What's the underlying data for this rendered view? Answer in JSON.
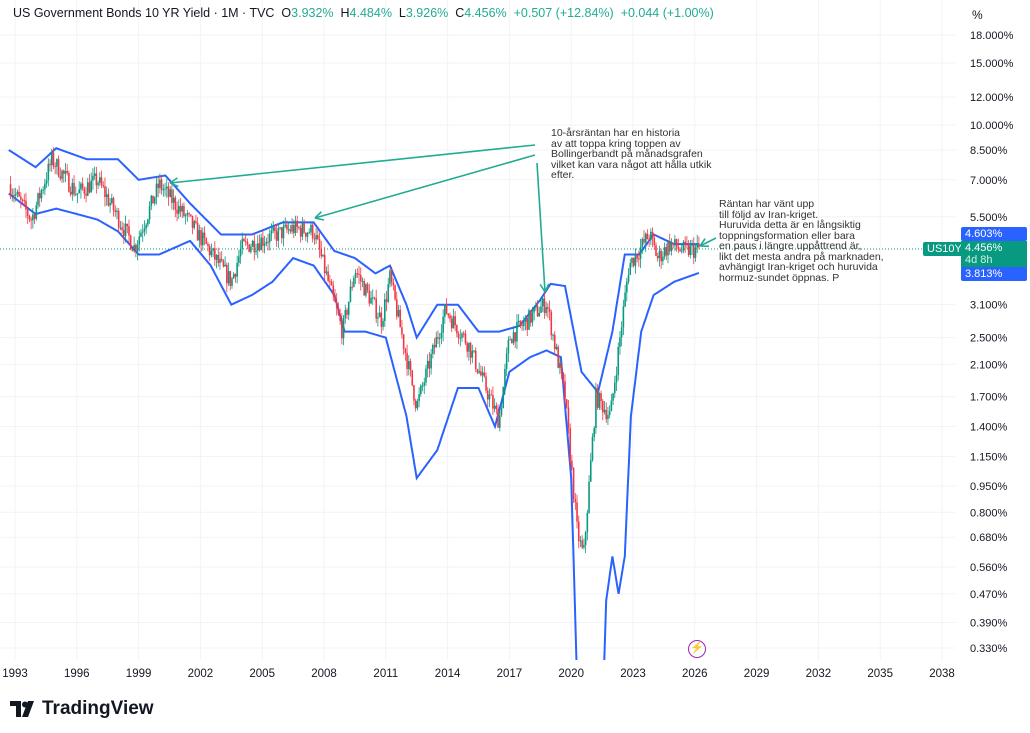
{
  "header": {
    "symbol": "US Government Bonds 10 YR Yield · 1M · TVC",
    "o_label": "O",
    "o": "3.932%",
    "h_label": "H",
    "h": "4.484%",
    "l_label": "L",
    "l": "3.926%",
    "c_label": "C",
    "c": "4.456%",
    "change": "+0.507 (+12.84%)",
    "change2": "+0.044 (+1.00%)"
  },
  "axis_unit": "%",
  "notes": {
    "first": "10-årsräntan har en historia\nav att toppa kring toppen av\nBollingerbandt på månadsgrafen\nvilket kan vara något att hålla utkik\nefter.",
    "second": "Räntan har vänt upp\ntill följd av Iran-kriget.\nHuruvida detta är en långsiktig\ntoppningsformation eller bara\nen paus i längre uppåttrend är,\nlikt det mesta andra på marknaden,\navhängigt Iran-kriget och huruvida\nhormuz-sundet öppnas. P"
  },
  "price_tags": {
    "upper": "4.603%",
    "symbol": "US10Y",
    "last": "4.456%",
    "countdown": "4d 8h",
    "lower": "3.813%"
  },
  "brand": "TradingView",
  "colors": {
    "up": "#089981",
    "down": "#f23645",
    "band": "#2962ff",
    "annotation": "#22ab94"
  },
  "chart_data": {
    "type": "candlestick",
    "scale": "log",
    "ylim": [
      0.3,
      20
    ],
    "xlim": [
      1992.7,
      2040
    ],
    "yticks": [
      "18.000%",
      "15.000%",
      "12.000%",
      "10.000%",
      "8.500%",
      "7.000%",
      "5.500%",
      "3.100%",
      "2.500%",
      "2.100%",
      "1.700%",
      "1.400%",
      "1.150%",
      "0.950%",
      "0.800%",
      "0.680%",
      "0.560%",
      "0.470%",
      "0.390%",
      "0.330%"
    ],
    "xticks": [
      "1993",
      "1996",
      "1999",
      "2002",
      "2005",
      "2008",
      "2011",
      "2014",
      "2017",
      "2020",
      "2023",
      "2026",
      "2029",
      "2032",
      "2035",
      "2038"
    ],
    "price_path": [
      [
        1992.7,
        6.8
      ],
      [
        1993.8,
        5.4
      ],
      [
        1994.8,
        8.0
      ],
      [
        1996,
        6.4
      ],
      [
        1997,
        7.0
      ],
      [
        1998.8,
        4.5
      ],
      [
        2000,
        6.8
      ],
      [
        2001.5,
        5.3
      ],
      [
        2003.5,
        3.6
      ],
      [
        2004,
        4.5
      ],
      [
        2006.5,
        5.1
      ],
      [
        2007.5,
        5.0
      ],
      [
        2008.9,
        2.6
      ],
      [
        2009.5,
        3.9
      ],
      [
        2010.8,
        2.8
      ],
      [
        2011.2,
        3.7
      ],
      [
        2012.5,
        1.6
      ],
      [
        2013.9,
        3.0
      ],
      [
        2015,
        2.4
      ],
      [
        2016.5,
        1.45
      ],
      [
        2017,
        2.5
      ],
      [
        2018.8,
        3.15
      ],
      [
        2019.7,
        1.7
      ],
      [
        2020.3,
        0.7
      ],
      [
        2020.6,
        0.6
      ],
      [
        2021.2,
        1.7
      ],
      [
        2021.9,
        1.5
      ],
      [
        2022.8,
        4.0
      ],
      [
        2023.8,
        4.9
      ],
      [
        2024.2,
        4.2
      ],
      [
        2024.8,
        4.6
      ],
      [
        2025.5,
        4.4
      ],
      [
        2026.2,
        4.456
      ]
    ],
    "bb_upper": [
      [
        1992.7,
        8.5
      ],
      [
        1994,
        7.6
      ],
      [
        1995,
        8.6
      ],
      [
        1996.5,
        8.0
      ],
      [
        1998,
        8.0
      ],
      [
        1999,
        7.0
      ],
      [
        2000.3,
        7.2
      ],
      [
        2001.5,
        6.0
      ],
      [
        2003,
        4.9
      ],
      [
        2004.5,
        4.9
      ],
      [
        2006,
        5.3
      ],
      [
        2007.5,
        5.3
      ],
      [
        2008.5,
        4.4
      ],
      [
        2009.5,
        4.2
      ],
      [
        2010.5,
        3.8
      ],
      [
        2011.2,
        4.0
      ],
      [
        2012,
        3.1
      ],
      [
        2012.5,
        2.5
      ],
      [
        2013.5,
        3.1
      ],
      [
        2014.5,
        3.1
      ],
      [
        2015.5,
        2.6
      ],
      [
        2016.5,
        2.6
      ],
      [
        2017.5,
        2.7
      ],
      [
        2018.5,
        3.2
      ],
      [
        2019,
        3.55
      ],
      [
        2019.7,
        3.5
      ],
      [
        2020.5,
        2.0
      ],
      [
        2021.3,
        1.75
      ],
      [
        2022,
        2.6
      ],
      [
        2022.6,
        4.3
      ],
      [
        2023.3,
        4.3
      ],
      [
        2024,
        4.9
      ],
      [
        2025,
        4.6
      ],
      [
        2026.2,
        4.603
      ]
    ],
    "bb_lower": [
      [
        1992.7,
        6.4
      ],
      [
        1994,
        5.6
      ],
      [
        1995,
        5.8
      ],
      [
        1996,
        5.6
      ],
      [
        1997,
        5.4
      ],
      [
        1998,
        5.0
      ],
      [
        1999,
        4.3
      ],
      [
        2000,
        4.3
      ],
      [
        2001.5,
        4.7
      ],
      [
        2002.5,
        4.0
      ],
      [
        2003.5,
        3.1
      ],
      [
        2004.5,
        3.3
      ],
      [
        2005.5,
        3.6
      ],
      [
        2006.5,
        4.2
      ],
      [
        2007.5,
        4.0
      ],
      [
        2008.5,
        3.3
      ],
      [
        2009,
        2.6
      ],
      [
        2010,
        2.6
      ],
      [
        2011,
        2.5
      ],
      [
        2012,
        1.5
      ],
      [
        2012.5,
        1.0
      ],
      [
        2013.5,
        1.2
      ],
      [
        2014.5,
        1.8
      ],
      [
        2015.5,
        1.8
      ],
      [
        2016.3,
        1.4
      ],
      [
        2017,
        2.0
      ],
      [
        2018,
        2.2
      ],
      [
        2018.8,
        2.3
      ],
      [
        2019.5,
        2.2
      ],
      [
        2020,
        1.0
      ],
      [
        2020.3,
        0.25
      ],
      [
        2021.5,
        0.2
      ],
      [
        2021.7,
        0.45
      ],
      [
        2022,
        0.6
      ],
      [
        2022.3,
        0.47
      ],
      [
        2022.6,
        0.6
      ],
      [
        2022.9,
        1.5
      ],
      [
        2023.4,
        2.6
      ],
      [
        2024,
        3.3
      ],
      [
        2025,
        3.6
      ],
      [
        2026.2,
        3.813
      ]
    ]
  }
}
